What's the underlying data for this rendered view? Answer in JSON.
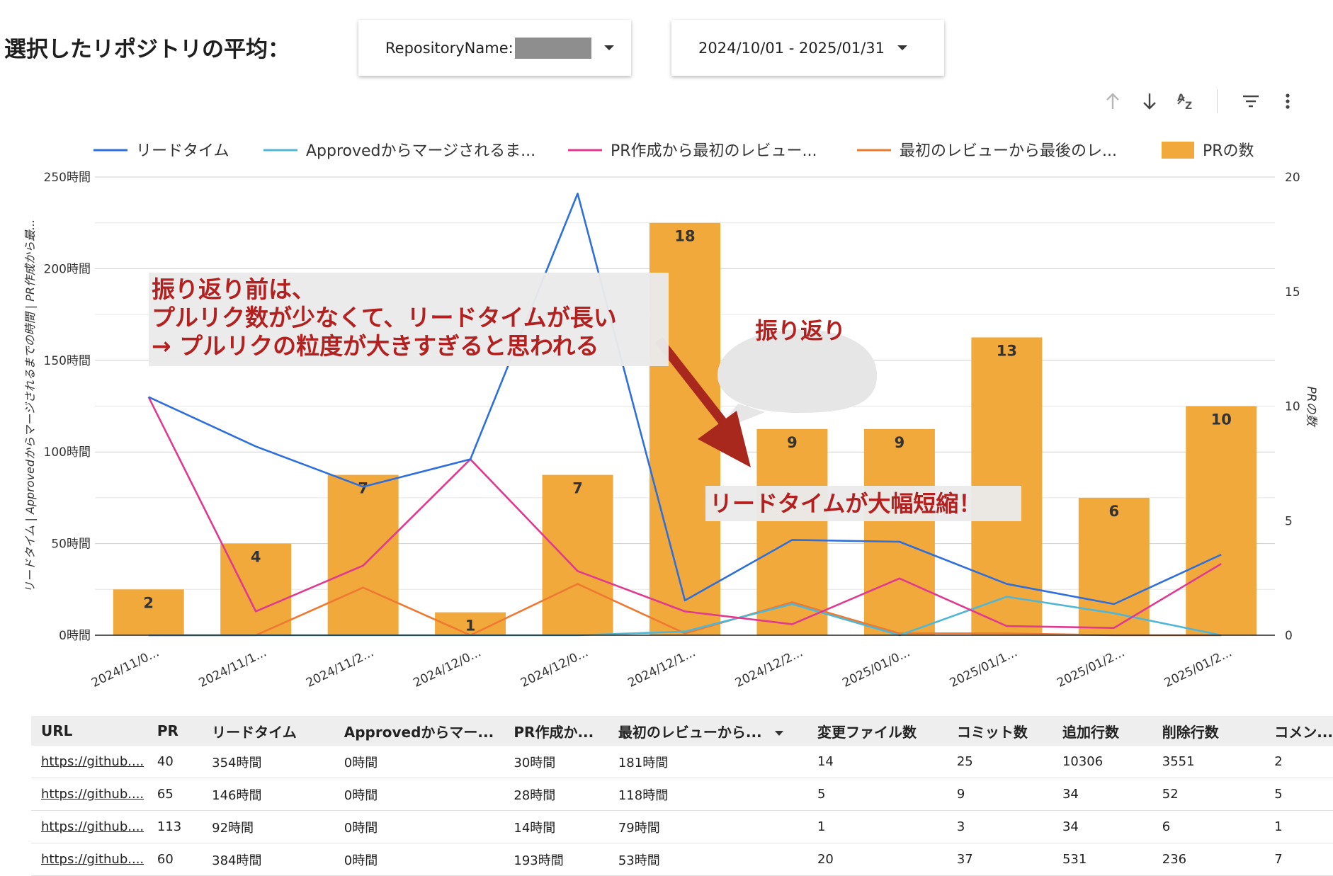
{
  "title": "選択したリポジトリの平均：",
  "filters": {
    "repository_label": "RepositoryName:",
    "date_range": "2024/10/01 - 2025/01/31"
  },
  "toolbar": {
    "sort_asc": "sort-ascending-icon",
    "sort_desc": "sort-descending-icon",
    "sort_az": "sort-az-icon",
    "filter": "filter-icon",
    "more": "more-vert-icon"
  },
  "colors": {
    "lead_time": "#2f6fdc",
    "approved_merge": "#4fb6d6",
    "pr_to_review": "#e03a90",
    "review_span": "#ee7a32",
    "bars": "#f2a93b",
    "callout_text": "#b22020",
    "arrow": "#a8281d"
  },
  "chart_data": {
    "type": "bar",
    "categories": [
      "2024/11/0...",
      "2024/11/1...",
      "2024/11/2...",
      "2024/12/0...",
      "2024/12/0...",
      "2024/12/1...",
      "2024/12/2...",
      "2025/01/0...",
      "2025/01/1...",
      "2025/01/2...",
      "2025/01/2..."
    ],
    "y_left_ticks": [
      "0時間",
      "50時間",
      "100時間",
      "150時間",
      "200時間",
      "250時間"
    ],
    "y_left_range": [
      0,
      250
    ],
    "y_right_ticks": [
      "0",
      "5",
      "10",
      "15",
      "20"
    ],
    "y_right_range": [
      0,
      20
    ],
    "ylabel_left": "リードタイム | Approvedからマージされるまでの時間 | PR作成から最...",
    "ylabel_right": "PRの数",
    "legend_position": "top",
    "grid": true,
    "series": [
      {
        "name": "リードタイム",
        "kind": "line",
        "axis": "left",
        "values": [
          130,
          103,
          81,
          96,
          241,
          19,
          52,
          51,
          28,
          17,
          44
        ]
      },
      {
        "name": "Approvedからマージされるま...",
        "kind": "line",
        "axis": "left",
        "values": [
          0,
          0,
          0,
          0,
          0,
          2,
          17,
          0,
          21,
          12,
          0
        ]
      },
      {
        "name": "PR作成から最初のレビュー...",
        "kind": "line",
        "axis": "left",
        "values": [
          130,
          13,
          38,
          96,
          35,
          13,
          6,
          31,
          5,
          4,
          39
        ]
      },
      {
        "name": "最初のレビューから最後のレ...",
        "kind": "line",
        "axis": "left",
        "values": [
          0,
          0,
          26,
          0,
          28,
          1,
          18,
          1,
          1,
          0,
          0
        ]
      },
      {
        "name": "PRの数",
        "kind": "bar",
        "axis": "right",
        "values": [
          2,
          4,
          7,
          1,
          7,
          18,
          9,
          9,
          13,
          6,
          10
        ],
        "labels": [
          "2",
          "4",
          "7",
          "1",
          "7",
          "18",
          "9",
          "9",
          "13",
          "6",
          "10"
        ]
      }
    ]
  },
  "annotations": {
    "main_lines": [
      "振り返り前は、",
      "プルリク数が少なくて、リードタイムが長い",
      "→ プルリクの粒度が大きすぎると思われる"
    ],
    "bubble": "振り返り",
    "improved": "リードタイムが大幅短縮！"
  },
  "table": {
    "headers": [
      "URL",
      "PR",
      "リードタイム",
      "Approvedからマー...",
      "PR作成か...",
      "最初のレビューから...",
      "変更ファイル数",
      "コミット数",
      "追加行数",
      "削除行数",
      "コメン..."
    ],
    "rows": [
      [
        "https://github....",
        "40",
        "354時間",
        "0時間",
        "30時間",
        "181時間",
        "14",
        "25",
        "10306",
        "3551",
        "2"
      ],
      [
        "https://github....",
        "65",
        "146時間",
        "0時間",
        "28時間",
        "118時間",
        "5",
        "9",
        "34",
        "52",
        "5"
      ],
      [
        "https://github....",
        "113",
        "92時間",
        "0時間",
        "14時間",
        "79時間",
        "1",
        "3",
        "34",
        "6",
        "1"
      ],
      [
        "https://github....",
        "60",
        "384時間",
        "0時間",
        "193時間",
        "53時間",
        "20",
        "37",
        "531",
        "236",
        "7"
      ]
    ]
  }
}
